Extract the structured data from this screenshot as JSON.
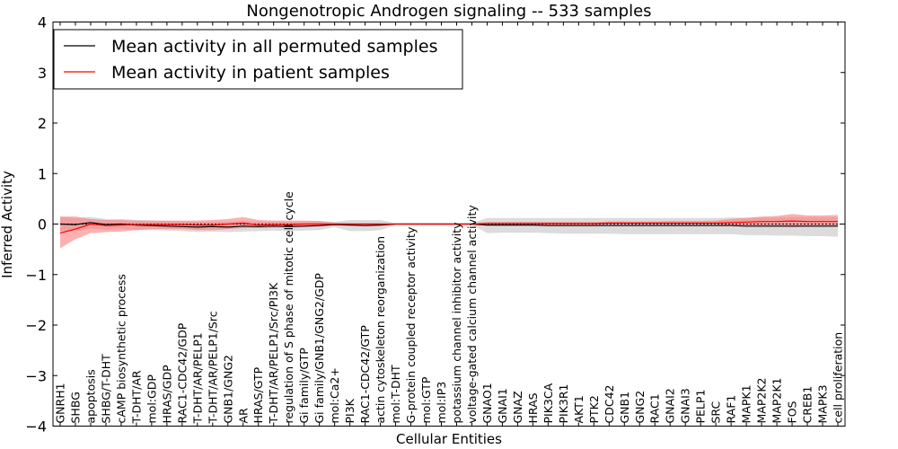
{
  "chart_data": {
    "type": "line",
    "title": "Nongenotropic Androgen signaling -- 533 samples",
    "xlabel": "Cellular Entities",
    "ylabel": "Inferred Activity",
    "ylim": [
      -4,
      4
    ],
    "yticks": [
      "−4",
      "−3",
      "−2",
      "−1",
      "0",
      "1",
      "2",
      "3",
      "4"
    ],
    "grid": false,
    "legend_position": "top-left",
    "colors": {
      "permuted": "#000000",
      "patient": "#ff0000",
      "permuted_band": "#bfbfbf",
      "patient_band": "#ff6f6f"
    },
    "categories": [
      "GNRH1",
      "SHBG",
      "apoptosis",
      "SHBG/T-DHT",
      "cAMP biosynthetic process",
      "T-DHT/AR",
      "mol:GDP",
      "HRAS/GDP",
      "RAC1-CDC42/GDP",
      "T-DHT/AR/PELP1",
      "T-DHT/AR/PELP1/Src",
      "GNB1/GNG2",
      "AR",
      "HRAS/GTP",
      "T-DHT/AR/PELP1/Src/PI3K",
      "regulation of S phase of mitotic cell cycle",
      "Gi family/GTP",
      "Gi family/GNB1/GNG2/GDP",
      "mol:Ca2+",
      "PI3K",
      "RAC1-CDC42/GTP",
      "actin cytoskeleton reorganization",
      "mol:T-DHT",
      "G-protein coupled receptor activity",
      "mol:GTP",
      "mol:IP3",
      "potassium channel inhibitor activity",
      "voltage-gated calcium channel activity",
      "GNAO1",
      "GNAI1",
      "GNAZ",
      "HRAS",
      "PIK3CA",
      "PIK3R1",
      "AKT1",
      "PTK2",
      "CDC42",
      "GNB1",
      "GNG2",
      "RAC1",
      "GNAI2",
      "GNAI3",
      "PELP1",
      "SRC",
      "RAF1",
      "MAPK1",
      "MAP2K2",
      "MAP2K1",
      "FOS",
      "CREB1",
      "MAPK3",
      "cell proliferation"
    ],
    "series": [
      {
        "name": "Mean activity in all permuted samples",
        "values": [
          0.0,
          -0.01,
          0.03,
          -0.01,
          0.0,
          -0.02,
          -0.03,
          -0.04,
          -0.05,
          -0.06,
          -0.05,
          -0.06,
          -0.04,
          -0.05,
          -0.04,
          -0.05,
          -0.04,
          -0.03,
          -0.01,
          -0.02,
          -0.03,
          -0.02,
          0.0,
          0.0,
          0.0,
          0.0,
          0.0,
          0.0,
          -0.02,
          -0.02,
          -0.02,
          -0.02,
          -0.03,
          -0.03,
          -0.03,
          -0.03,
          -0.03,
          -0.03,
          -0.03,
          -0.03,
          -0.03,
          -0.03,
          -0.03,
          -0.03,
          -0.03,
          -0.04,
          -0.04,
          -0.04,
          -0.04,
          -0.04,
          -0.04,
          -0.04
        ],
        "lower": [
          -0.14,
          -0.14,
          -0.09,
          -0.11,
          -0.1,
          -0.12,
          -0.12,
          -0.13,
          -0.14,
          -0.16,
          -0.15,
          -0.16,
          -0.15,
          -0.14,
          -0.13,
          -0.14,
          -0.13,
          -0.12,
          -0.06,
          -0.14,
          -0.14,
          -0.12,
          -0.02,
          -0.02,
          -0.02,
          -0.02,
          -0.02,
          -0.02,
          -0.18,
          -0.17,
          -0.17,
          -0.17,
          -0.18,
          -0.19,
          -0.19,
          -0.19,
          -0.19,
          -0.2,
          -0.2,
          -0.2,
          -0.2,
          -0.2,
          -0.2,
          -0.2,
          -0.2,
          -0.22,
          -0.22,
          -0.23,
          -0.23,
          -0.24,
          -0.24,
          -0.25
        ],
        "upper": [
          0.14,
          0.12,
          0.14,
          0.1,
          0.1,
          0.08,
          0.07,
          0.06,
          0.05,
          0.05,
          0.05,
          0.05,
          0.06,
          0.05,
          0.05,
          0.05,
          0.05,
          0.06,
          0.04,
          0.08,
          0.08,
          0.08,
          0.02,
          0.02,
          0.02,
          0.02,
          0.02,
          0.02,
          0.12,
          0.12,
          0.12,
          0.12,
          0.12,
          0.12,
          0.12,
          0.12,
          0.12,
          0.12,
          0.12,
          0.12,
          0.12,
          0.12,
          0.12,
          0.12,
          0.13,
          0.13,
          0.13,
          0.13,
          0.14,
          0.14,
          0.14,
          0.14
        ]
      },
      {
        "name": "Mean activity in patient samples",
        "values": [
          -0.18,
          -0.1,
          0.0,
          -0.03,
          -0.02,
          -0.01,
          -0.01,
          -0.01,
          -0.01,
          -0.02,
          -0.02,
          0.0,
          0.02,
          -0.02,
          -0.01,
          -0.01,
          0.0,
          0.0,
          0.0,
          0.0,
          0.0,
          0.0,
          0.0,
          0.0,
          0.0,
          0.0,
          0.0,
          0.0,
          0.01,
          0.01,
          0.01,
          0.01,
          0.01,
          0.01,
          0.01,
          0.01,
          0.02,
          0.02,
          0.02,
          0.02,
          0.02,
          0.02,
          0.02,
          0.02,
          0.03,
          0.04,
          0.05,
          0.05,
          0.06,
          0.05,
          0.05,
          0.05
        ],
        "lower": [
          -0.48,
          -0.3,
          -0.18,
          -0.16,
          -0.15,
          -0.12,
          -0.1,
          -0.1,
          -0.1,
          -0.12,
          -0.12,
          -0.1,
          -0.08,
          -0.08,
          -0.07,
          -0.07,
          -0.06,
          -0.05,
          -0.02,
          -0.02,
          -0.02,
          -0.02,
          -0.01,
          -0.01,
          -0.01,
          -0.01,
          -0.01,
          -0.01,
          -0.02,
          -0.02,
          -0.02,
          -0.02,
          -0.02,
          -0.02,
          -0.02,
          -0.02,
          -0.01,
          -0.01,
          -0.01,
          -0.01,
          -0.01,
          -0.01,
          -0.01,
          -0.01,
          -0.02,
          -0.04,
          -0.05,
          -0.05,
          -0.06,
          -0.05,
          -0.05,
          -0.05
        ],
        "upper": [
          0.15,
          0.15,
          0.1,
          0.08,
          0.08,
          0.07,
          0.07,
          0.07,
          0.07,
          0.07,
          0.08,
          0.1,
          0.14,
          0.08,
          0.07,
          0.07,
          0.07,
          0.06,
          0.03,
          0.02,
          0.02,
          0.02,
          0.01,
          0.01,
          0.01,
          0.01,
          0.01,
          0.01,
          0.04,
          0.04,
          0.04,
          0.04,
          0.04,
          0.04,
          0.04,
          0.04,
          0.05,
          0.05,
          0.05,
          0.05,
          0.06,
          0.06,
          0.06,
          0.07,
          0.1,
          0.12,
          0.15,
          0.16,
          0.2,
          0.17,
          0.17,
          0.18
        ]
      }
    ]
  }
}
